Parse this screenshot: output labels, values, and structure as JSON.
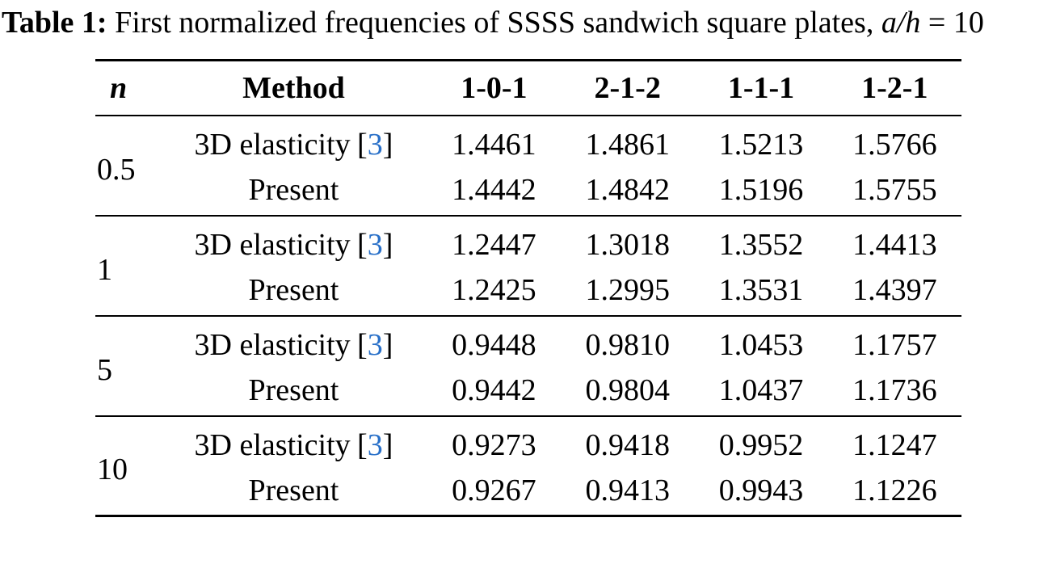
{
  "title": {
    "label": "Table 1:",
    "text": " First normalized frequencies of SSSS sandwich square plates, ",
    "math": "a/h",
    "suffix": " = 10"
  },
  "colors": {
    "citation": "#2970C8",
    "text": "#000000",
    "background": "#FFFFFF",
    "rule": "#000000"
  },
  "reference": {
    "open": "[",
    "number": "3",
    "close": "]"
  },
  "table": {
    "columns": [
      "n",
      "Method",
      "1-0-1",
      "2-1-2",
      "1-1-1",
      "1-2-1"
    ],
    "groups": [
      {
        "n": "0.5",
        "row1": {
          "method": "3D elasticity",
          "values": [
            "1.4461",
            "1.4861",
            "1.5213",
            "1.5766"
          ]
        },
        "row2": {
          "method": "Present",
          "values": [
            "1.4442",
            "1.4842",
            "1.5196",
            "1.5755"
          ]
        }
      },
      {
        "n": "1",
        "row1": {
          "method": "3D elasticity",
          "values": [
            "1.2447",
            "1.3018",
            "1.3552",
            "1.4413"
          ]
        },
        "row2": {
          "method": "Present",
          "values": [
            "1.2425",
            "1.2995",
            "1.3531",
            "1.4397"
          ]
        }
      },
      {
        "n": "5",
        "row1": {
          "method": "3D elasticity",
          "values": [
            "0.9448",
            "0.9810",
            "1.0453",
            "1.1757"
          ]
        },
        "row2": {
          "method": "Present",
          "values": [
            "0.9442",
            "0.9804",
            "1.0437",
            "1.1736"
          ]
        }
      },
      {
        "n": "10",
        "row1": {
          "method": "3D elasticity",
          "values": [
            "0.9273",
            "0.9418",
            "0.9952",
            "1.1247"
          ]
        },
        "row2": {
          "method": "Present",
          "values": [
            "0.9267",
            "0.9413",
            "0.9943",
            "1.1226"
          ]
        }
      }
    ]
  }
}
